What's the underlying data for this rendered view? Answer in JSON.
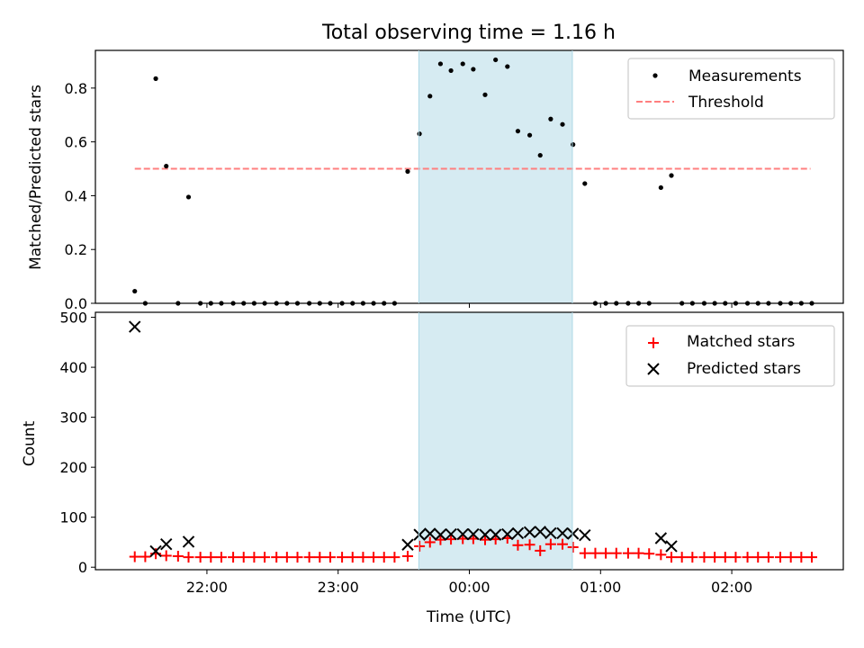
{
  "title": "Total observing time = 1.16 h",
  "colors": {
    "measurement": "#000000",
    "threshold": "#ff7f7f",
    "matched": "#ff0000",
    "predicted": "#000000",
    "span": "#add8e6"
  },
  "chart_data": [
    {
      "type": "scatter",
      "panel": "top",
      "ylabel": "Matched/Predicted stars",
      "xlabel": "",
      "ylim": [
        0,
        0.94
      ],
      "yticks": [
        0.0,
        0.2,
        0.4,
        0.6,
        0.8
      ],
      "ytick_labels": [
        "0.0",
        "0.2",
        "0.4",
        "0.6",
        "0.8"
      ],
      "x_unit": "hours since 00:00 UTC",
      "xlim": [
        -2.85,
        2.85
      ],
      "xticks": [
        -2,
        -1,
        0,
        1,
        2
      ],
      "highlight_span": [
        -0.385,
        0.785
      ],
      "threshold": {
        "value": 0.5,
        "x_range": [
          -2.55,
          2.6
        ],
        "style": "dashed"
      },
      "legend": {
        "location": "upper right",
        "entries": [
          "Measurements",
          "Threshold"
        ]
      },
      "series": [
        {
          "name": "Measurements",
          "marker": "dot",
          "points": [
            [
              -2.55,
              0.045
            ],
            [
              -2.47,
              0.0
            ],
            [
              -2.39,
              0.835
            ],
            [
              -2.31,
              0.51
            ],
            [
              -2.22,
              0.0
            ],
            [
              -2.14,
              0.395
            ],
            [
              -2.05,
              0.0
            ],
            [
              -1.97,
              0.0
            ],
            [
              -1.89,
              0.0
            ],
            [
              -1.8,
              0.0
            ],
            [
              -1.72,
              0.0
            ],
            [
              -1.64,
              0.0
            ],
            [
              -1.56,
              0.0
            ],
            [
              -1.47,
              0.0
            ],
            [
              -1.39,
              0.0
            ],
            [
              -1.31,
              0.0
            ],
            [
              -1.22,
              0.0
            ],
            [
              -1.14,
              0.0
            ],
            [
              -1.06,
              0.0
            ],
            [
              -0.97,
              0.0
            ],
            [
              -0.89,
              0.0
            ],
            [
              -0.81,
              0.0
            ],
            [
              -0.73,
              0.0
            ],
            [
              -0.65,
              0.0
            ],
            [
              -0.57,
              0.0
            ],
            [
              -0.47,
              0.49
            ],
            [
              -0.38,
              0.63
            ],
            [
              -0.3,
              0.77
            ],
            [
              -0.22,
              0.89
            ],
            [
              -0.14,
              0.865
            ],
            [
              -0.05,
              0.89
            ],
            [
              0.03,
              0.87
            ],
            [
              0.12,
              0.775
            ],
            [
              0.2,
              0.905
            ],
            [
              0.29,
              0.88
            ],
            [
              0.37,
              0.64
            ],
            [
              0.46,
              0.625
            ],
            [
              0.54,
              0.55
            ],
            [
              0.62,
              0.685
            ],
            [
              0.71,
              0.665
            ],
            [
              0.79,
              0.59
            ],
            [
              0.88,
              0.445
            ],
            [
              0.96,
              0.0
            ],
            [
              1.04,
              0.0
            ],
            [
              1.12,
              0.0
            ],
            [
              1.21,
              0.0
            ],
            [
              1.29,
              0.0
            ],
            [
              1.37,
              0.0
            ],
            [
              1.46,
              0.43
            ],
            [
              1.54,
              0.475
            ],
            [
              1.62,
              0.0
            ],
            [
              1.7,
              0.0
            ],
            [
              1.79,
              0.0
            ],
            [
              1.87,
              0.0
            ],
            [
              1.95,
              0.0
            ],
            [
              2.03,
              0.0
            ],
            [
              2.12,
              0.0
            ],
            [
              2.2,
              0.0
            ],
            [
              2.28,
              0.0
            ],
            [
              2.37,
              0.0
            ],
            [
              2.45,
              0.0
            ],
            [
              2.53,
              0.0
            ],
            [
              2.61,
              0.0
            ]
          ]
        }
      ]
    },
    {
      "type": "scatter",
      "panel": "bottom",
      "ylabel": "Count",
      "xlabel": "Time (UTC)",
      "ylim": [
        -5,
        510
      ],
      "yticks": [
        0,
        100,
        200,
        300,
        400,
        500
      ],
      "ytick_labels": [
        "0",
        "100",
        "200",
        "300",
        "400",
        "500"
      ],
      "x_unit": "hours since 00:00 UTC",
      "xlim": [
        -2.85,
        2.85
      ],
      "xticks": [
        -2,
        -1,
        0,
        1,
        2
      ],
      "xtick_labels": [
        "22:00",
        "23:00",
        "00:00",
        "01:00",
        "02:00"
      ],
      "highlight_span": [
        -0.385,
        0.785
      ],
      "legend": {
        "location": "upper right",
        "entries": [
          "Matched stars",
          "Predicted stars"
        ]
      },
      "series": [
        {
          "name": "Matched stars",
          "marker": "plus",
          "points": [
            [
              -2.55,
              21
            ],
            [
              -2.47,
              21
            ],
            [
              -2.39,
              27
            ],
            [
              -2.31,
              23
            ],
            [
              -2.22,
              22
            ],
            [
              -2.14,
              20
            ],
            [
              -2.05,
              20
            ],
            [
              -1.97,
              20
            ],
            [
              -1.89,
              20
            ],
            [
              -1.8,
              20
            ],
            [
              -1.72,
              20
            ],
            [
              -1.64,
              20
            ],
            [
              -1.56,
              20
            ],
            [
              -1.47,
              20
            ],
            [
              -1.39,
              20
            ],
            [
              -1.31,
              20
            ],
            [
              -1.22,
              20
            ],
            [
              -1.14,
              20
            ],
            [
              -1.06,
              20
            ],
            [
              -0.97,
              20
            ],
            [
              -0.89,
              20
            ],
            [
              -0.81,
              20
            ],
            [
              -0.73,
              20
            ],
            [
              -0.65,
              20
            ],
            [
              -0.57,
              20
            ],
            [
              -0.47,
              22
            ],
            [
              -0.38,
              42
            ],
            [
              -0.3,
              50
            ],
            [
              -0.22,
              55
            ],
            [
              -0.14,
              56
            ],
            [
              -0.05,
              57
            ],
            [
              0.03,
              57
            ],
            [
              0.12,
              55
            ],
            [
              0.2,
              56
            ],
            [
              0.29,
              58
            ],
            [
              0.37,
              44
            ],
            [
              0.46,
              45
            ],
            [
              0.54,
              33
            ],
            [
              0.62,
              46
            ],
            [
              0.71,
              46
            ],
            [
              0.79,
              40
            ],
            [
              0.88,
              28
            ],
            [
              0.96,
              28
            ],
            [
              1.04,
              28
            ],
            [
              1.12,
              28
            ],
            [
              1.21,
              28
            ],
            [
              1.29,
              28
            ],
            [
              1.37,
              27
            ],
            [
              1.46,
              25
            ],
            [
              1.54,
              20
            ],
            [
              1.62,
              20
            ],
            [
              1.7,
              20
            ],
            [
              1.79,
              20
            ],
            [
              1.87,
              20
            ],
            [
              1.95,
              20
            ],
            [
              2.03,
              20
            ],
            [
              2.12,
              20
            ],
            [
              2.2,
              20
            ],
            [
              2.28,
              20
            ],
            [
              2.37,
              20
            ],
            [
              2.45,
              20
            ],
            [
              2.53,
              20
            ],
            [
              2.61,
              20
            ]
          ]
        },
        {
          "name": "Predicted stars",
          "marker": "x",
          "points": [
            [
              -2.55,
              481
            ],
            [
              -2.39,
              32
            ],
            [
              -2.31,
              46
            ],
            [
              -2.14,
              51
            ],
            [
              -0.47,
              45
            ],
            [
              -0.38,
              65
            ],
            [
              -0.3,
              67
            ],
            [
              -0.22,
              65
            ],
            [
              -0.14,
              66
            ],
            [
              -0.05,
              66
            ],
            [
              0.03,
              66
            ],
            [
              0.12,
              65
            ],
            [
              0.2,
              65
            ],
            [
              0.29,
              66
            ],
            [
              0.37,
              68
            ],
            [
              0.46,
              70
            ],
            [
              0.54,
              71
            ],
            [
              0.62,
              68
            ],
            [
              0.71,
              68
            ],
            [
              0.79,
              67
            ],
            [
              0.88,
              64
            ],
            [
              1.46,
              58
            ],
            [
              1.54,
              42
            ]
          ]
        }
      ]
    }
  ]
}
